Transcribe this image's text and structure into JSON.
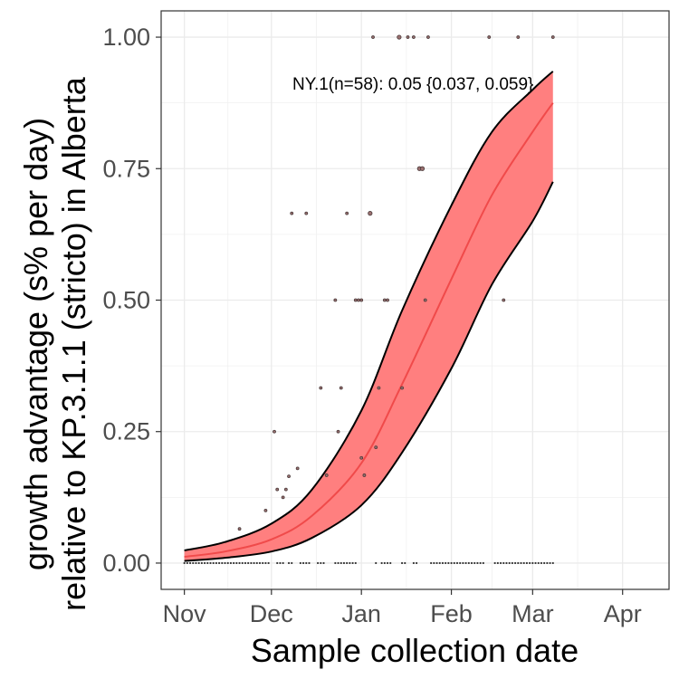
{
  "chart_data": {
    "type": "line",
    "xlabel": "Sample collection date",
    "ylabel_lines": [
      "growth advantage (s% per day)",
      "relative to KP.3.1.1 (stricto) in Alberta"
    ],
    "x_domain": [
      "2024-10-24",
      "2025-04-17"
    ],
    "ylim": [
      -0.05,
      1.05
    ],
    "grid": true,
    "legend": "none",
    "x_ticks": [
      {
        "label": "Nov",
        "date": "2024-11-01"
      },
      {
        "label": "Dec",
        "date": "2024-12-01"
      },
      {
        "label": "Jan",
        "date": "2025-01-01"
      },
      {
        "label": "Feb",
        "date": "2025-02-01"
      },
      {
        "label": "Mar",
        "date": "2025-03-01"
      },
      {
        "label": "Apr",
        "date": "2025-04-01"
      }
    ],
    "y_ticks": [
      {
        "label": "0.00",
        "value": 0
      },
      {
        "label": "0.25",
        "value": 0.25
      },
      {
        "label": "0.50",
        "value": 0.5
      },
      {
        "label": "0.75",
        "value": 0.75
      },
      {
        "label": "1.00",
        "value": 1
      }
    ],
    "annotation": "NY.1(n=58): 0.05 {0.037, 0.059}",
    "colors": {
      "ribbon": "#ff7f7f",
      "fit_line": "#f04a4a",
      "ribbon_edge": "#000000",
      "points": "#4a3a3a"
    },
    "fit": [
      {
        "date": "2024-11-01",
        "y": 0.012,
        "lo": 0.004,
        "hi": 0.024
      },
      {
        "date": "2024-11-15",
        "y": 0.022,
        "lo": 0.01,
        "hi": 0.04
      },
      {
        "date": "2024-12-01",
        "y": 0.045,
        "lo": 0.022,
        "hi": 0.075
      },
      {
        "date": "2024-12-15",
        "y": 0.09,
        "lo": 0.048,
        "hi": 0.14
      },
      {
        "date": "2025-01-01",
        "y": 0.19,
        "lo": 0.11,
        "hi": 0.29
      },
      {
        "date": "2025-01-15",
        "y": 0.34,
        "lo": 0.21,
        "hi": 0.48
      },
      {
        "date": "2025-02-01",
        "y": 0.54,
        "lo": 0.37,
        "hi": 0.68
      },
      {
        "date": "2025-02-15",
        "y": 0.7,
        "lo": 0.53,
        "hi": 0.82
      },
      {
        "date": "2025-03-01",
        "y": 0.82,
        "lo": 0.65,
        "hi": 0.9
      },
      {
        "date": "2025-03-08",
        "y": 0.875,
        "lo": 0.725,
        "hi": 0.935
      }
    ],
    "points": [
      {
        "date": "2024-11-20",
        "y": 0.065,
        "size": 1
      },
      {
        "date": "2024-11-29",
        "y": 0.1,
        "size": 1
      },
      {
        "date": "2024-12-02",
        "y": 0.25,
        "size": 1
      },
      {
        "date": "2024-12-03",
        "y": 0.14,
        "size": 1
      },
      {
        "date": "2024-12-05",
        "y": 0.125,
        "size": 1
      },
      {
        "date": "2024-12-06",
        "y": 0.14,
        "size": 1
      },
      {
        "date": "2024-12-07",
        "y": 0.165,
        "size": 1
      },
      {
        "date": "2024-12-08",
        "y": 0.665,
        "size": 1
      },
      {
        "date": "2024-12-10",
        "y": 0.18,
        "size": 1
      },
      {
        "date": "2024-12-13",
        "y": 0.665,
        "size": 1
      },
      {
        "date": "2024-12-18",
        "y": 0.333,
        "size": 1
      },
      {
        "date": "2024-12-20",
        "y": 0.167,
        "size": 1
      },
      {
        "date": "2024-12-23",
        "y": 0.5,
        "size": 1
      },
      {
        "date": "2024-12-24",
        "y": 0.25,
        "size": 1
      },
      {
        "date": "2024-12-25",
        "y": 0.333,
        "size": 1
      },
      {
        "date": "2024-12-27",
        "y": 0.665,
        "size": 1
      },
      {
        "date": "2024-12-30",
        "y": 0.5,
        "size": 1
      },
      {
        "date": "2024-12-31",
        "y": 0.5,
        "size": 1
      },
      {
        "date": "2025-01-01",
        "y": 0.5,
        "size": 1
      },
      {
        "date": "2025-01-01",
        "y": 0.2,
        "size": 1
      },
      {
        "date": "2025-01-02",
        "y": 0.167,
        "size": 1
      },
      {
        "date": "2025-01-04",
        "y": 0.665,
        "size": 2
      },
      {
        "date": "2025-01-05",
        "y": 1.0,
        "size": 1
      },
      {
        "date": "2025-01-06",
        "y": 0.22,
        "size": 1
      },
      {
        "date": "2025-01-07",
        "y": 0.333,
        "size": 1
      },
      {
        "date": "2025-01-09",
        "y": 0.5,
        "size": 1
      },
      {
        "date": "2025-01-10",
        "y": 0.5,
        "size": 1
      },
      {
        "date": "2025-01-14",
        "y": 1.0,
        "size": 2
      },
      {
        "date": "2025-01-15",
        "y": 0.333,
        "size": 1
      },
      {
        "date": "2025-01-17",
        "y": 1.0,
        "size": 1
      },
      {
        "date": "2025-01-19",
        "y": 1.0,
        "size": 1
      },
      {
        "date": "2025-01-21",
        "y": 0.75,
        "size": 2
      },
      {
        "date": "2025-01-22",
        "y": 0.75,
        "size": 2
      },
      {
        "date": "2025-01-23",
        "y": 0.5,
        "size": 1
      },
      {
        "date": "2025-01-24",
        "y": 1.0,
        "size": 1
      },
      {
        "date": "2025-02-14",
        "y": 1.0,
        "size": 1
      },
      {
        "date": "2025-02-19",
        "y": 0.5,
        "size": 1
      },
      {
        "date": "2025-02-24",
        "y": 1.0,
        "size": 1
      },
      {
        "date": "2025-03-08",
        "y": 1.0,
        "size": 1
      }
    ],
    "zero_point_ranges": [
      [
        "2024-11-01",
        "2024-11-30"
      ],
      [
        "2024-12-03",
        "2024-12-04"
      ],
      [
        "2024-12-07",
        "2024-12-08"
      ],
      [
        "2024-12-11",
        "2024-12-14"
      ],
      [
        "2024-12-17",
        "2024-12-19"
      ],
      [
        "2024-12-23",
        "2024-12-30"
      ],
      [
        "2025-01-08",
        "2025-01-11"
      ],
      [
        "2025-01-15",
        "2025-01-16"
      ],
      [
        "2025-01-19",
        "2025-01-20"
      ],
      [
        "2025-01-25",
        "2025-02-12"
      ],
      [
        "2025-02-16",
        "2025-02-21"
      ],
      [
        "2025-02-22",
        "2025-03-08"
      ]
    ],
    "zero_point_singles": [
      "2024-12-05",
      "2025-01-06"
    ]
  }
}
